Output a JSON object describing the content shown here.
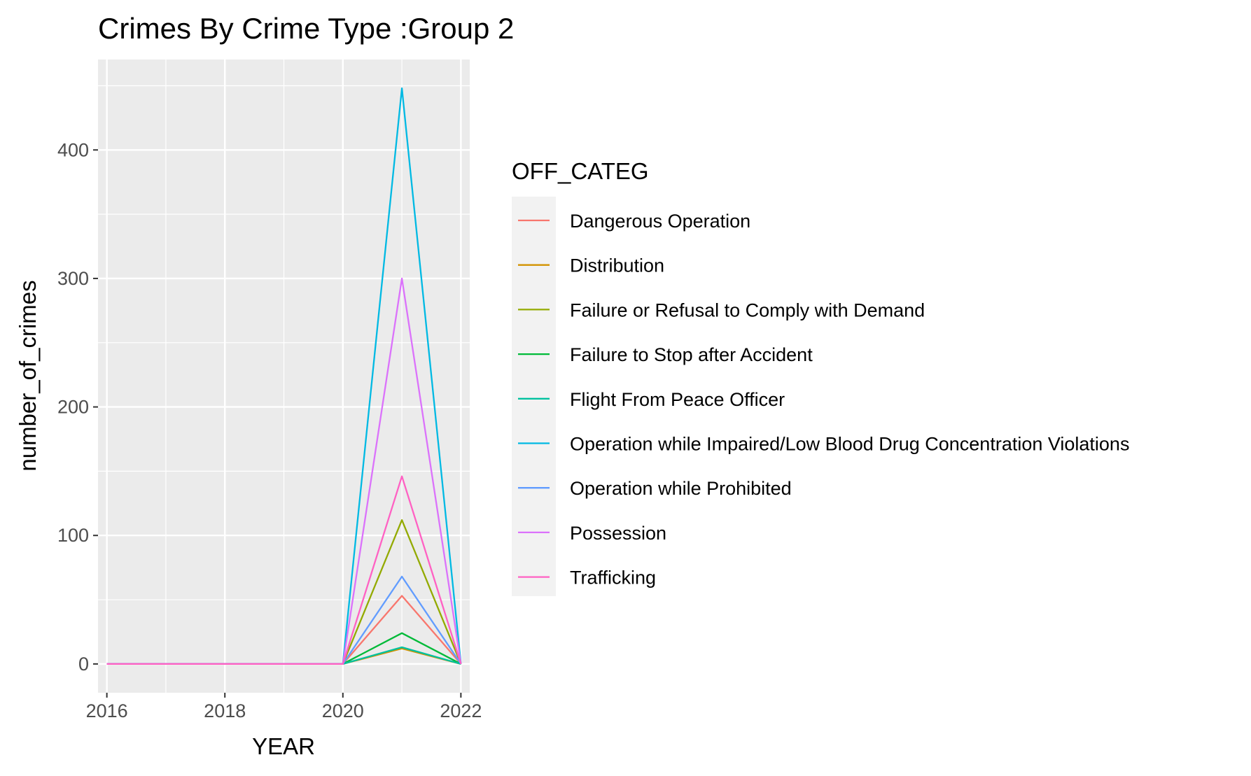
{
  "chart_data": {
    "type": "line",
    "title": "Crimes By Crime Type :Group 2",
    "xlabel": "YEAR",
    "ylabel": "number_of_crimes",
    "xlim": [
      2015.85,
      2022.15
    ],
    "ylim": [
      -22.4,
      470.4
    ],
    "x_ticks": [
      2016,
      2018,
      2020,
      2022
    ],
    "y_ticks": [
      0,
      100,
      200,
      300,
      400
    ],
    "x": [
      2016,
      2017,
      2018,
      2019,
      2020,
      2021,
      2022
    ],
    "grid": true,
    "legend": {
      "title": "OFF_CATEG",
      "placement": "right"
    },
    "series": [
      {
        "name": "Dangerous Operation",
        "color": "#F8766D",
        "values": [
          0,
          0,
          0,
          0,
          0,
          53,
          0
        ]
      },
      {
        "name": "Distribution",
        "color": "#D39200",
        "values": [
          0,
          0,
          0,
          0,
          0,
          12,
          0
        ]
      },
      {
        "name": "Failure or Refusal to Comply with Demand",
        "color": "#93AA00",
        "values": [
          0,
          0,
          0,
          0,
          0,
          112,
          0
        ]
      },
      {
        "name": "Failure to Stop after Accident",
        "color": "#00BA38",
        "values": [
          0,
          0,
          0,
          0,
          0,
          24,
          0
        ]
      },
      {
        "name": "Flight From Peace Officer",
        "color": "#00C19F",
        "values": [
          0,
          0,
          0,
          0,
          0,
          13,
          0
        ]
      },
      {
        "name": "Operation while Impaired/Low Blood Drug Concentration Violations",
        "color": "#00B9E3",
        "values": [
          0,
          0,
          0,
          0,
          0,
          448,
          0
        ]
      },
      {
        "name": "Operation while Prohibited",
        "color": "#619CFF",
        "values": [
          0,
          0,
          0,
          0,
          0,
          68,
          0
        ]
      },
      {
        "name": "Possession",
        "color": "#DB72FB",
        "values": [
          0,
          0,
          0,
          0,
          0,
          300,
          0
        ]
      },
      {
        "name": "Trafficking",
        "color": "#FF61C3",
        "values": [
          0,
          0,
          0,
          0,
          0,
          146,
          0
        ]
      }
    ]
  }
}
